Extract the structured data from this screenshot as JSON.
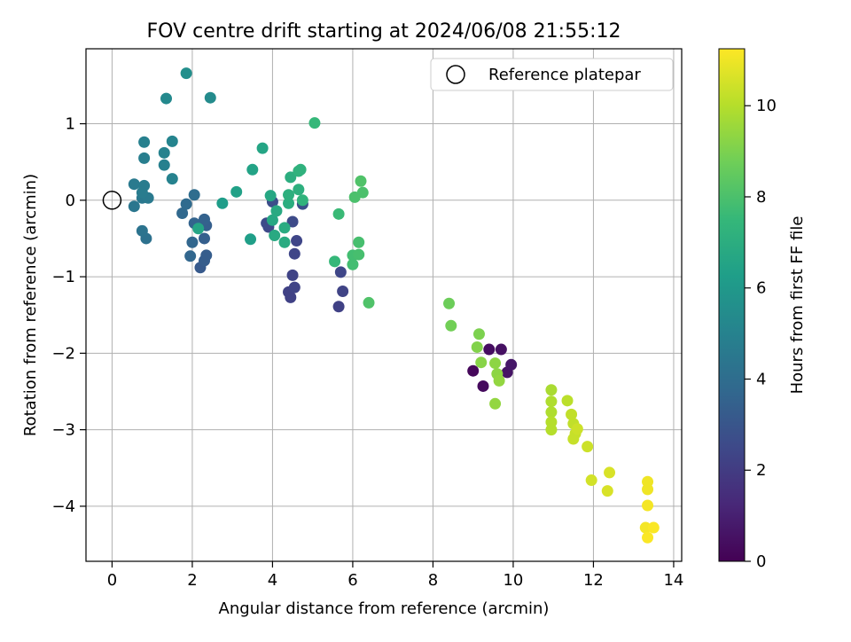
{
  "chart_data": {
    "type": "scatter",
    "title": "FOV centre drift starting at 2024/06/08 21:55:12",
    "xlabel": "Angular distance from reference (arcmin)",
    "ylabel": "Rotation from reference (arcmin)",
    "xlim": [
      -0.65,
      14.2
    ],
    "ylim": [
      -4.72,
      1.98
    ],
    "xticks": [
      0,
      2,
      4,
      6,
      8,
      10,
      12,
      14
    ],
    "yticks": [
      -4,
      -3,
      -2,
      -1,
      0,
      1
    ],
    "grid": true,
    "legend": {
      "location": "top-right",
      "entries": [
        "Reference platepar"
      ]
    },
    "colorbar": {
      "label": "Hours from first FF file",
      "range": [
        0,
        11.25
      ],
      "ticks": [
        0,
        2,
        4,
        6,
        8,
        10
      ],
      "colormap": [
        "#440154",
        "#482878",
        "#3e4989",
        "#31688e",
        "#26828e",
        "#1f9e89",
        "#35b779",
        "#6ece58",
        "#b5de2b",
        "#fde725"
      ]
    },
    "reference_point": {
      "x": 0,
      "y": 0
    },
    "points": [
      {
        "x": 9.0,
        "y": -2.23,
        "h": 0.2
      },
      {
        "x": 9.25,
        "y": -2.43,
        "h": 0.3
      },
      {
        "x": 9.4,
        "y": -1.95,
        "h": 0.4
      },
      {
        "x": 9.7,
        "y": -1.95,
        "h": 0.5
      },
      {
        "x": 9.85,
        "y": -2.25,
        "h": 0.6
      },
      {
        "x": 9.95,
        "y": -2.15,
        "h": 0.7
      },
      {
        "x": 4.4,
        "y": -1.2,
        "h": 2.2
      },
      {
        "x": 4.45,
        "y": -1.27,
        "h": 2.2
      },
      {
        "x": 4.55,
        "y": -1.14,
        "h": 2.3
      },
      {
        "x": 4.5,
        "y": -0.98,
        "h": 2.3
      },
      {
        "x": 4.55,
        "y": -0.7,
        "h": 2.4
      },
      {
        "x": 4.6,
        "y": -0.53,
        "h": 2.4
      },
      {
        "x": 5.65,
        "y": -1.39,
        "h": 2.2
      },
      {
        "x": 5.75,
        "y": -1.19,
        "h": 2.3
      },
      {
        "x": 5.7,
        "y": -0.94,
        "h": 2.4
      },
      {
        "x": 3.9,
        "y": -0.35,
        "h": 2.5
      },
      {
        "x": 3.85,
        "y": -0.3,
        "h": 2.6
      },
      {
        "x": 4.0,
        "y": -0.02,
        "h": 2.7
      },
      {
        "x": 4.5,
        "y": -0.28,
        "h": 2.6
      },
      {
        "x": 4.75,
        "y": -0.05,
        "h": 2.8
      },
      {
        "x": 2.2,
        "y": -0.88,
        "h": 3.2
      },
      {
        "x": 2.3,
        "y": -0.79,
        "h": 3.3
      },
      {
        "x": 2.35,
        "y": -0.72,
        "h": 3.3
      },
      {
        "x": 2.3,
        "y": -0.5,
        "h": 3.4
      },
      {
        "x": 2.35,
        "y": -0.33,
        "h": 3.4
      },
      {
        "x": 2.3,
        "y": -0.25,
        "h": 3.5
      },
      {
        "x": 2.05,
        "y": -0.3,
        "h": 3.6
      },
      {
        "x": 2.0,
        "y": -0.55,
        "h": 3.7
      },
      {
        "x": 1.95,
        "y": -0.73,
        "h": 3.7
      },
      {
        "x": 1.75,
        "y": -0.17,
        "h": 3.8
      },
      {
        "x": 1.85,
        "y": -0.05,
        "h": 3.9
      },
      {
        "x": 2.05,
        "y": 0.07,
        "h": 4.0
      },
      {
        "x": 0.85,
        "y": -0.5,
        "h": 4.2
      },
      {
        "x": 0.75,
        "y": -0.4,
        "h": 4.3
      },
      {
        "x": 0.55,
        "y": -0.08,
        "h": 4.4
      },
      {
        "x": 0.75,
        "y": 0.03,
        "h": 4.5
      },
      {
        "x": 0.9,
        "y": 0.03,
        "h": 4.6
      },
      {
        "x": 0.55,
        "y": 0.21,
        "h": 4.6
      },
      {
        "x": 0.8,
        "y": 0.19,
        "h": 4.7
      },
      {
        "x": 0.75,
        "y": 0.1,
        "h": 4.7
      },
      {
        "x": 0.8,
        "y": 0.55,
        "h": 4.8
      },
      {
        "x": 0.8,
        "y": 0.76,
        "h": 4.9
      },
      {
        "x": 1.3,
        "y": 0.46,
        "h": 4.9
      },
      {
        "x": 1.3,
        "y": 0.62,
        "h": 5.0
      },
      {
        "x": 1.5,
        "y": 0.28,
        "h": 5.0
      },
      {
        "x": 1.5,
        "y": 0.77,
        "h": 5.1
      },
      {
        "x": 1.35,
        "y": 1.33,
        "h": 5.3
      },
      {
        "x": 2.45,
        "y": 1.34,
        "h": 5.4
      },
      {
        "x": 1.85,
        "y": 1.66,
        "h": 5.6
      },
      {
        "x": 2.15,
        "y": -0.37,
        "h": 6.6
      },
      {
        "x": 2.75,
        "y": -0.04,
        "h": 6.2
      },
      {
        "x": 3.1,
        "y": 0.11,
        "h": 6.4
      },
      {
        "x": 3.45,
        "y": -0.51,
        "h": 6.3
      },
      {
        "x": 3.5,
        "y": 0.4,
        "h": 6.5
      },
      {
        "x": 3.75,
        "y": 0.68,
        "h": 6.6
      },
      {
        "x": 3.95,
        "y": 0.06,
        "h": 6.7
      },
      {
        "x": 4.0,
        "y": -0.26,
        "h": 6.7
      },
      {
        "x": 4.1,
        "y": -0.14,
        "h": 6.8
      },
      {
        "x": 4.05,
        "y": -0.46,
        "h": 6.8
      },
      {
        "x": 4.3,
        "y": -0.36,
        "h": 6.9
      },
      {
        "x": 4.3,
        "y": -0.55,
        "h": 6.9
      },
      {
        "x": 4.4,
        "y": -0.04,
        "h": 7.0
      },
      {
        "x": 4.45,
        "y": 0.3,
        "h": 7.0
      },
      {
        "x": 4.4,
        "y": 0.07,
        "h": 7.1
      },
      {
        "x": 4.65,
        "y": 0.14,
        "h": 7.1
      },
      {
        "x": 4.7,
        "y": 0.4,
        "h": 7.2
      },
      {
        "x": 4.75,
        "y": 0.0,
        "h": 7.3
      },
      {
        "x": 4.65,
        "y": 0.38,
        "h": 7.2
      },
      {
        "x": 5.05,
        "y": 1.01,
        "h": 7.5
      },
      {
        "x": 5.55,
        "y": -0.8,
        "h": 7.5
      },
      {
        "x": 5.65,
        "y": -0.18,
        "h": 7.6
      },
      {
        "x": 6.0,
        "y": -0.84,
        "h": 7.8
      },
      {
        "x": 6.0,
        "y": -0.72,
        "h": 7.8
      },
      {
        "x": 6.15,
        "y": -0.71,
        "h": 7.9
      },
      {
        "x": 6.15,
        "y": -0.55,
        "h": 7.9
      },
      {
        "x": 6.05,
        "y": 0.04,
        "h": 8.0
      },
      {
        "x": 6.25,
        "y": 0.1,
        "h": 8.0
      },
      {
        "x": 6.2,
        "y": 0.25,
        "h": 8.1
      },
      {
        "x": 6.4,
        "y": -1.34,
        "h": 8.1
      },
      {
        "x": 8.4,
        "y": -1.35,
        "h": 8.7
      },
      {
        "x": 8.45,
        "y": -1.64,
        "h": 8.8
      },
      {
        "x": 9.15,
        "y": -1.75,
        "h": 9.0
      },
      {
        "x": 9.1,
        "y": -1.92,
        "h": 9.1
      },
      {
        "x": 9.2,
        "y": -2.12,
        "h": 9.2
      },
      {
        "x": 9.55,
        "y": -2.13,
        "h": 9.3
      },
      {
        "x": 9.6,
        "y": -2.27,
        "h": 9.3
      },
      {
        "x": 9.65,
        "y": -2.36,
        "h": 9.4
      },
      {
        "x": 9.55,
        "y": -2.66,
        "h": 9.4
      },
      {
        "x": 10.95,
        "y": -2.48,
        "h": 9.8
      },
      {
        "x": 10.95,
        "y": -2.63,
        "h": 9.9
      },
      {
        "x": 10.95,
        "y": -2.77,
        "h": 9.9
      },
      {
        "x": 10.95,
        "y": -2.9,
        "h": 10.0
      },
      {
        "x": 10.95,
        "y": -3.0,
        "h": 10.0
      },
      {
        "x": 11.35,
        "y": -2.62,
        "h": 10.1
      },
      {
        "x": 11.45,
        "y": -2.8,
        "h": 10.2
      },
      {
        "x": 11.5,
        "y": -2.92,
        "h": 10.2
      },
      {
        "x": 11.55,
        "y": -3.05,
        "h": 10.3
      },
      {
        "x": 11.5,
        "y": -3.12,
        "h": 10.3
      },
      {
        "x": 11.6,
        "y": -2.99,
        "h": 10.4
      },
      {
        "x": 11.85,
        "y": -3.22,
        "h": 10.4
      },
      {
        "x": 11.95,
        "y": -3.66,
        "h": 10.5
      },
      {
        "x": 12.4,
        "y": -3.56,
        "h": 10.6
      },
      {
        "x": 12.35,
        "y": -3.8,
        "h": 10.6
      },
      {
        "x": 13.35,
        "y": -3.68,
        "h": 11.0
      },
      {
        "x": 13.35,
        "y": -3.78,
        "h": 11.0
      },
      {
        "x": 13.35,
        "y": -3.99,
        "h": 11.1
      },
      {
        "x": 13.3,
        "y": -4.28,
        "h": 11.1
      },
      {
        "x": 13.5,
        "y": -4.28,
        "h": 11.2
      },
      {
        "x": 13.35,
        "y": -4.41,
        "h": 11.2
      }
    ]
  }
}
